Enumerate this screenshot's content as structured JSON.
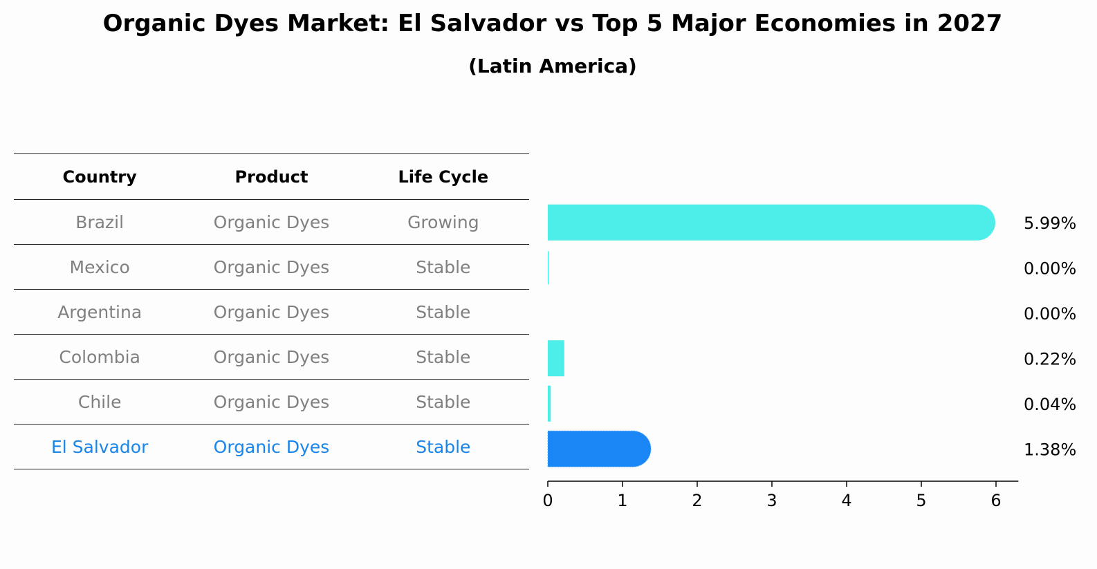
{
  "title": "Organic Dyes Market: El Salvador vs Top 5 Major Economies in 2027",
  "subtitle": "(Latin America)",
  "table": {
    "headers": [
      "Country",
      "Product",
      "Life Cycle"
    ],
    "rows": [
      [
        "Brazil",
        "Organic Dyes",
        "Growing"
      ],
      [
        "Mexico",
        "Organic Dyes",
        "Stable"
      ],
      [
        "Argentina",
        "Organic Dyes",
        "Stable"
      ],
      [
        "Colombia",
        "Organic Dyes",
        "Stable"
      ],
      [
        "Chile",
        "Organic Dyes",
        "Stable"
      ],
      [
        "El Salvador",
        "Organic Dyes",
        "Stable"
      ]
    ]
  },
  "colors": {
    "bar": "#4dede9",
    "highlight": "#1a85f5",
    "highlight_text": "#1a85e8",
    "muted_text": "#808080"
  },
  "chart_data": {
    "type": "bar",
    "orientation": "horizontal",
    "categories": [
      "Brazil",
      "Mexico",
      "Argentina",
      "Colombia",
      "Chile",
      "El Salvador"
    ],
    "values": [
      5.99,
      0.0,
      0.0,
      0.22,
      0.04,
      1.38
    ],
    "value_labels": [
      "5.99%",
      "0.00%",
      "0.00%",
      "0.22%",
      "0.04%",
      "1.38%"
    ],
    "highlight": "El Salvador",
    "xlim": [
      0,
      6.3
    ],
    "xticks": [
      0,
      1,
      2,
      3,
      4,
      5,
      6
    ],
    "tick_labels": [
      "0",
      "1",
      "2",
      "3",
      "4",
      "5",
      "6"
    ]
  }
}
